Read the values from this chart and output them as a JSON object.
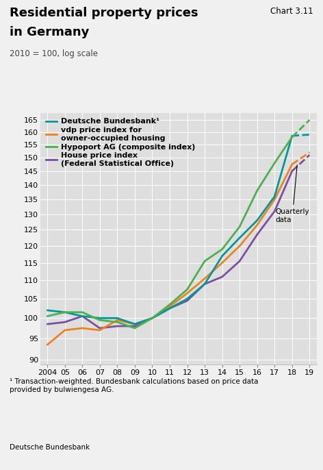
{
  "title_line1": "Residential property prices",
  "title_line2": "in Germany",
  "chart_label": "Chart 3.11",
  "subtitle": "2010 = 100, log scale",
  "footnote1": "¹ Transaction-weighted. Bundesbank calculations based on price data\nprovided by bulwiengesa AG.",
  "footnote2": "Deutsche Bundesbank",
  "annotation": "Quarterly\ndata",
  "colors": {
    "bundesbank": "#009999",
    "vdp": "#F0821E",
    "hypoport": "#4CAF50",
    "house_price": "#7B4EA0"
  },
  "years_annual": [
    2004,
    2005,
    2006,
    2007,
    2008,
    2009,
    2010,
    2011,
    2012,
    2013,
    2014,
    2015,
    2016,
    2017,
    2018
  ],
  "bundesbank_annual": [
    102.0,
    101.5,
    100.5,
    100.0,
    100.0,
    98.5,
    100.0,
    102.5,
    105.0,
    109.0,
    117.0,
    122.5,
    128.0,
    136.0,
    158.5
  ],
  "vdp_annual": [
    93.5,
    97.0,
    97.5,
    97.0,
    99.5,
    98.5,
    100.0,
    103.0,
    106.5,
    110.5,
    115.0,
    120.0,
    126.5,
    135.0,
    147.5
  ],
  "hypoport_annual": [
    100.5,
    101.5,
    101.5,
    99.5,
    99.0,
    97.5,
    100.0,
    103.5,
    107.5,
    115.5,
    119.0,
    126.0,
    138.0,
    148.0,
    158.0
  ],
  "house_price_annual": [
    98.5,
    99.0,
    100.5,
    97.5,
    98.0,
    98.0,
    100.0,
    102.5,
    104.5,
    109.0,
    111.0,
    115.5,
    123.5,
    131.0,
    145.0
  ],
  "bundesbank_q": [
    158.5,
    159.0
  ],
  "vdp_q": [
    147.5,
    152.0
  ],
  "hypoport_q": [
    158.0,
    165.0
  ],
  "house_price_q": [
    145.0,
    151.0
  ],
  "q_years": [
    2018,
    2019
  ],
  "xlim": [
    2003.6,
    2019.4
  ],
  "ylim": [
    89,
    168
  ],
  "yticks": [
    90,
    95,
    100,
    105,
    110,
    115,
    120,
    125,
    130,
    135,
    140,
    145,
    150,
    155,
    160,
    165
  ],
  "xticks": [
    2004,
    2005,
    2006,
    2007,
    2008,
    2009,
    2010,
    2011,
    2012,
    2013,
    2014,
    2015,
    2016,
    2017,
    2018,
    2019
  ],
  "xticklabels": [
    "2004",
    "05",
    "06",
    "07",
    "08",
    "09",
    "10",
    "11",
    "12",
    "13",
    "14",
    "15",
    "16",
    "17",
    "18",
    "19"
  ],
  "background_color": "#DEDEDE",
  "fig_background": "#F0F0F0",
  "legend_entries": [
    "Deutsche Bundesbank¹",
    "vdp price index for\nowner-occupied housing",
    "Hypoport AG (composite index)",
    "House price index\n(Federal Statistical Office)"
  ],
  "title_fontsize": 13,
  "subtitle_fontsize": 8.5,
  "tick_fontsize": 8,
  "legend_fontsize": 8,
  "footnote_fontsize": 7.5,
  "linewidth": 2.0
}
